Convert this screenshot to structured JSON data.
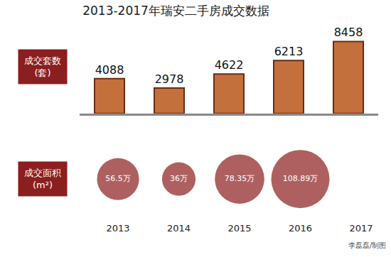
{
  "chart_data": [
    {
      "type": "bar",
      "title": "2013-2017年瑞安二手房成交数据",
      "ylabel": "成交套数\n(套)",
      "categories": [
        "2013",
        "2014",
        "2015",
        "2016",
        "2017"
      ],
      "values": [
        4088,
        2978,
        4622,
        6213,
        8458
      ],
      "color": "#c4703d",
      "ylim": [
        0,
        10000
      ],
      "grid": false,
      "tick_labels": false,
      "data_labels": true
    },
    {
      "type": "scatter",
      "marker": "circle",
      "ylabel": "成交面积\n(m²)",
      "categories": [
        "2013",
        "2014",
        "2015",
        "2016",
        "2017"
      ],
      "values": [
        56.5,
        36,
        78.35,
        108.89,
        null
      ],
      "value_labels": [
        "56.5万",
        "36万",
        "78.35万",
        "108.89万",
        null
      ],
      "color": "#8b1c1c",
      "grid": false,
      "tick_labels": "x",
      "data_labels": true,
      "annotations": [
        "李磊磊/制图"
      ]
    }
  ]
}
